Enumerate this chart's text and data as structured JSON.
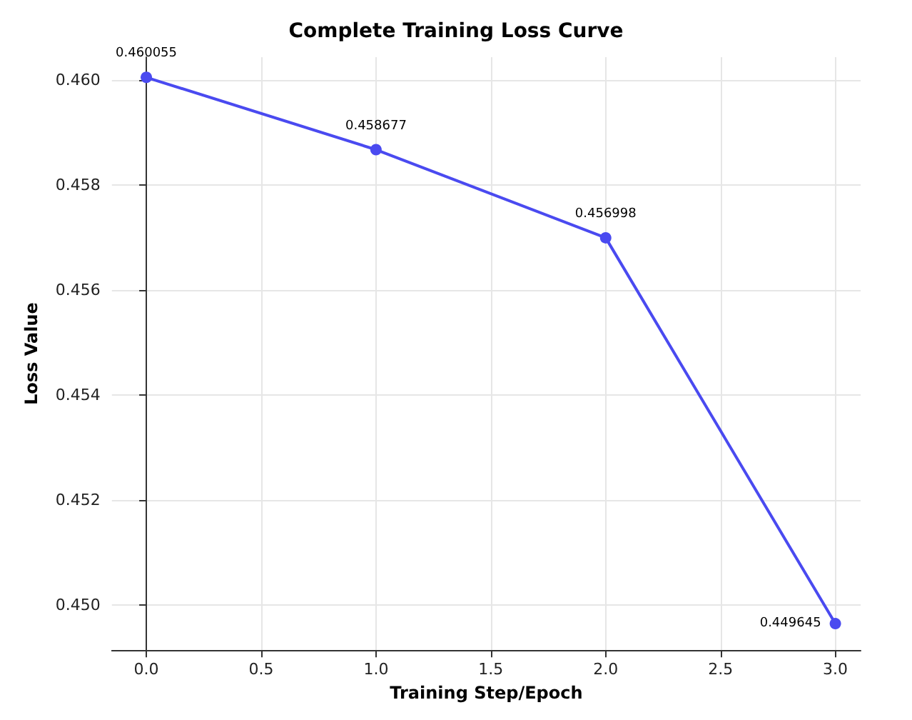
{
  "chart_data": {
    "type": "line",
    "title": "Complete Training Loss Curve",
    "xlabel": "Training Step/Epoch",
    "ylabel": "Loss Value",
    "x": [
      0,
      1,
      2,
      3
    ],
    "series": [
      {
        "color": "#4a4af0",
        "values": [
          0.460055,
          0.458677,
          0.456998,
          0.449645
        ]
      }
    ],
    "data_labels": true,
    "marker": "circle",
    "line_style": "solid",
    "grid": true,
    "xlim": [
      -0.15,
      3.11
    ],
    "xticks": [
      {
        "value": 0,
        "label": "0.0"
      },
      {
        "value": 0.5,
        "label": "0.5"
      },
      {
        "value": 1,
        "label": "1.0"
      },
      {
        "value": 1.5,
        "label": "1.5"
      },
      {
        "value": 2,
        "label": "2.0"
      },
      {
        "value": 2.5,
        "label": "2.5"
      },
      {
        "value": 3,
        "label": "3.0"
      }
    ],
    "ylim": [
      0.44914,
      0.46044
    ],
    "yticks": [
      {
        "value": 0.45,
        "label": "0.450"
      },
      {
        "value": 0.452,
        "label": "0.452"
      },
      {
        "value": 0.454,
        "label": "0.454"
      },
      {
        "value": 0.456,
        "label": "0.456"
      },
      {
        "value": 0.458,
        "label": "0.458"
      },
      {
        "value": 0.46,
        "label": "0.460"
      }
    ]
  }
}
